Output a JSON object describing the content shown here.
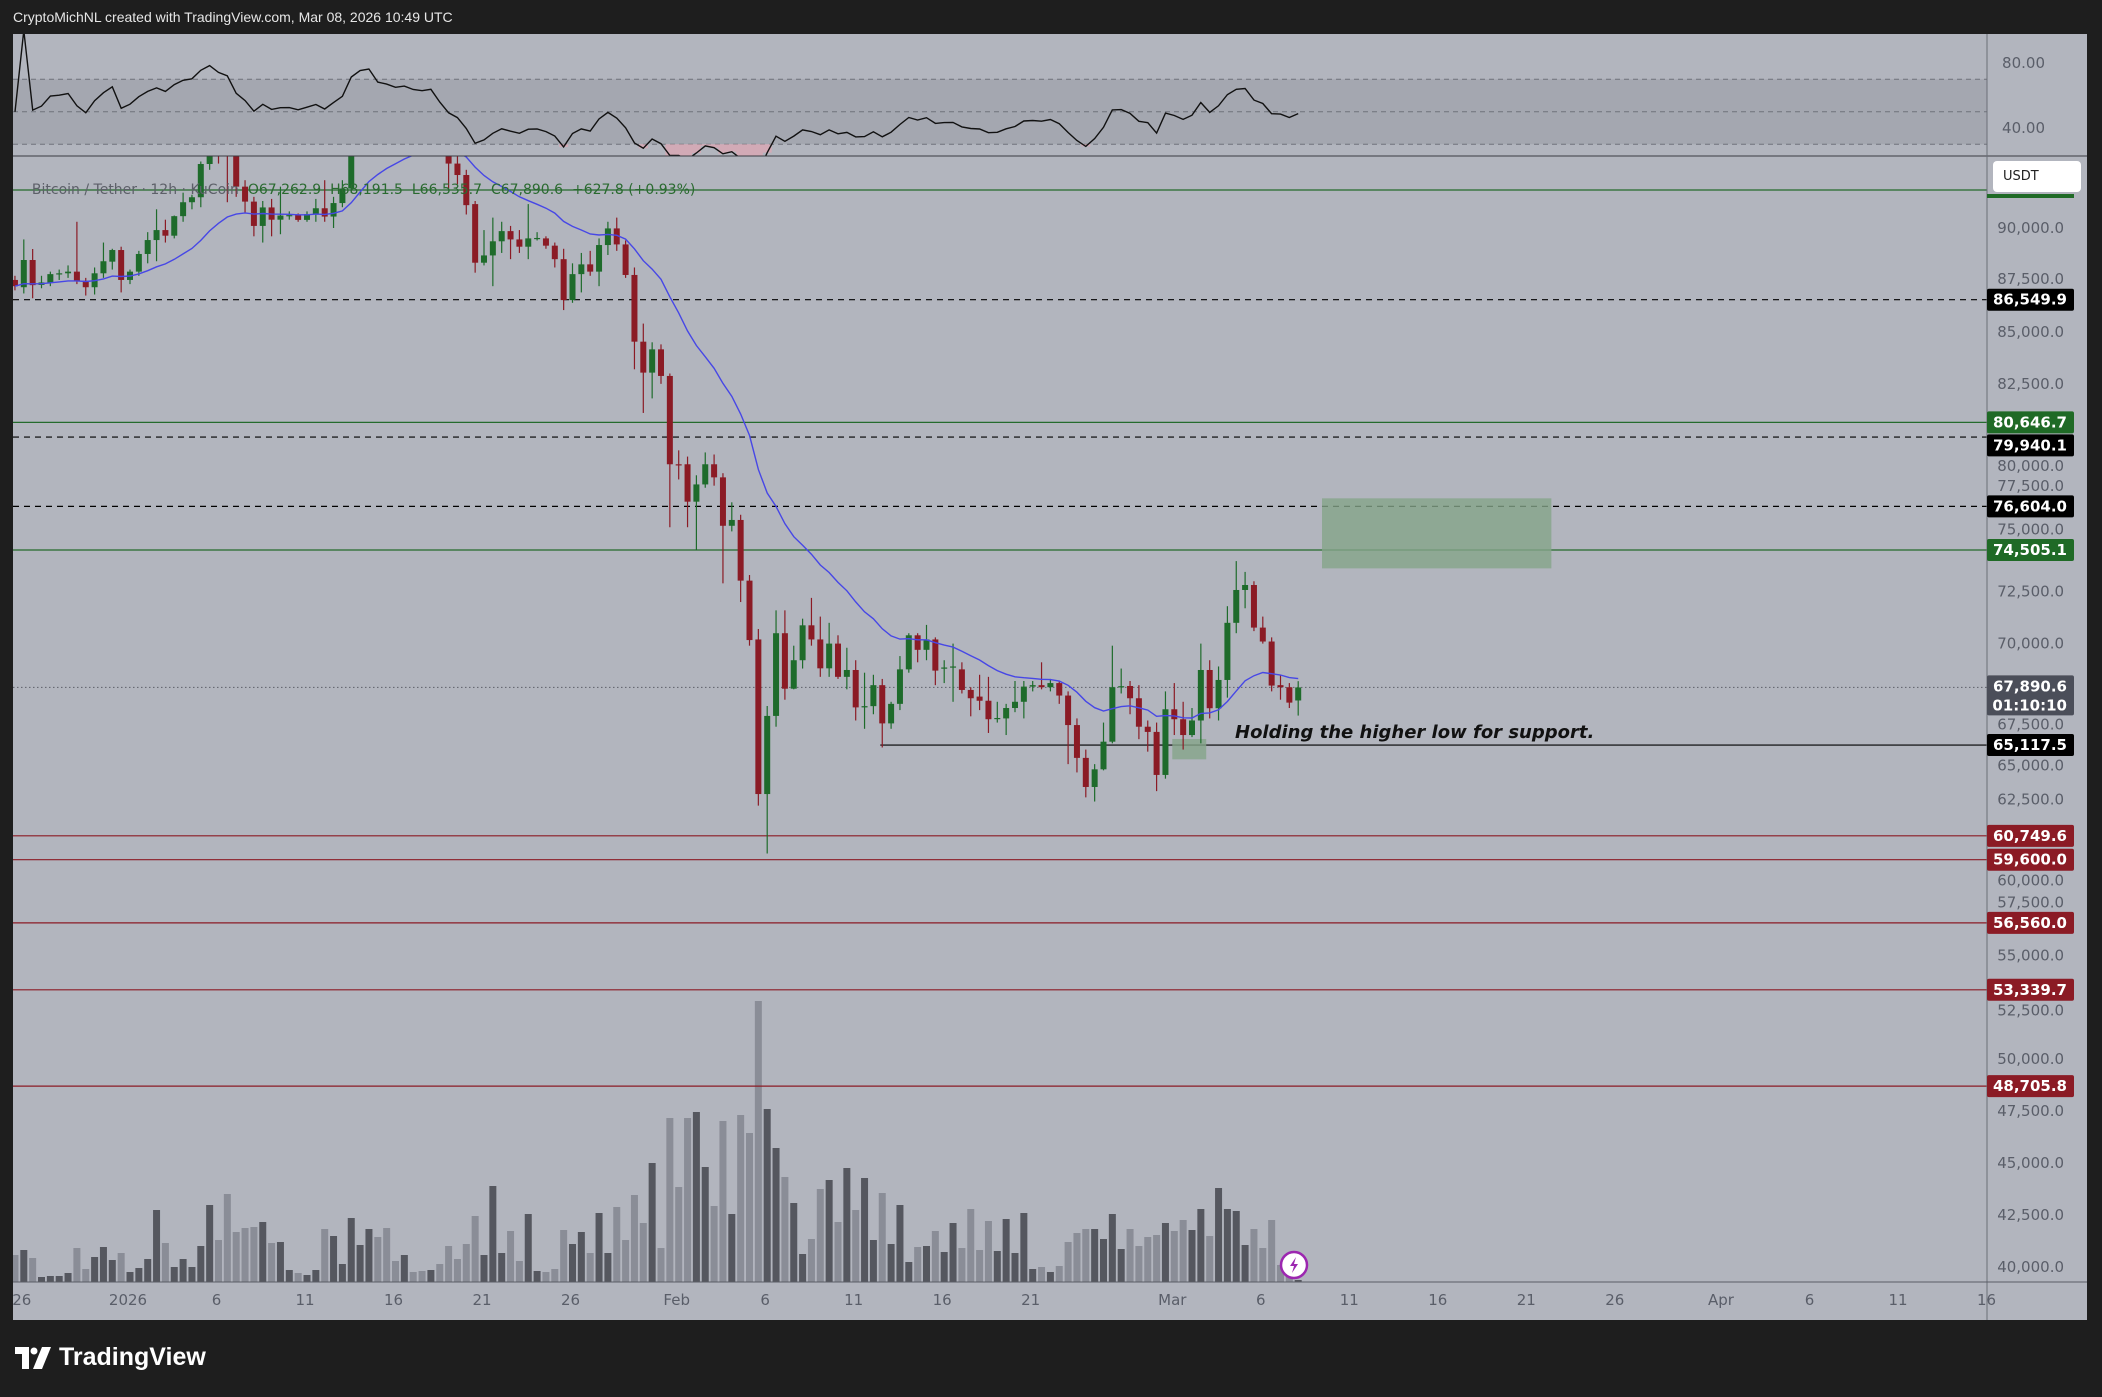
{
  "header": {
    "attribution": "CryptoMichNL created with TradingView.com, Mar 08, 2026 10:49 UTC"
  },
  "legend": {
    "symbol": "Bitcoin / Tether · 12h · KuCoin",
    "open": "O67,262.9",
    "high": "H68,191.5",
    "low": "L66,535.7",
    "close": "C67,890.6",
    "change": "+627.8 (+0.93%)"
  },
  "currency_button": "USDT",
  "annotation": "Holding the higher low for support.",
  "footer": {
    "brand": "TradingView"
  },
  "colors": {
    "background": "#b2b5be",
    "up": "#1e6b2b",
    "down": "#8b1b25",
    "moving_average": "#4747e6",
    "volume_up": "#55575f",
    "volume_down": "#8a8d97",
    "support_green": "#246b2c",
    "resistance_red": "#8b1b25",
    "box_fill": "#84a58a",
    "alert_icon": "#9c27b0"
  },
  "chart_data": {
    "type": "candlestick",
    "symbol": "Bitcoin / Tether",
    "interval": "12h",
    "exchange": "KuCoin",
    "first_bar": "2025-12-25T12:00",
    "ylim": [
      39230,
      93430
    ],
    "price_axis_ticks": [
      "90,000.0",
      "87,500.0",
      "85,000.0",
      "82,500.0",
      "80,000.0",
      "77,500.0",
      "75,000.0",
      "72,500.0",
      "70,000.0",
      "67,500.0",
      "65,000.0",
      "62,500.0",
      "60,000.0",
      "57,500.0",
      "55,000.0",
      "52,500.0",
      "50,000.0",
      "47,500.0",
      "45,000.0",
      "42,500.0",
      "40,000.0"
    ],
    "time_axis_ticks": [
      {
        "label": "26",
        "date": "2025-12-26"
      },
      {
        "label": "2026",
        "date": "2026-01-01"
      },
      {
        "label": "6",
        "date": "2026-01-06"
      },
      {
        "label": "11",
        "date": "2026-01-11"
      },
      {
        "label": "16",
        "date": "2026-01-16"
      },
      {
        "label": "21",
        "date": "2026-01-21"
      },
      {
        "label": "26",
        "date": "2026-01-26"
      },
      {
        "label": "Feb",
        "date": "2026-02-01"
      },
      {
        "label": "6",
        "date": "2026-02-06"
      },
      {
        "label": "11",
        "date": "2026-02-11"
      },
      {
        "label": "16",
        "date": "2026-02-16"
      },
      {
        "label": "21",
        "date": "2026-02-21"
      },
      {
        "label": "Mar",
        "date": "2026-03-01"
      },
      {
        "label": "6",
        "date": "2026-03-06"
      },
      {
        "label": "11",
        "date": "2026-03-11"
      },
      {
        "label": "16",
        "date": "2026-03-16"
      },
      {
        "label": "21",
        "date": "2026-03-21"
      },
      {
        "label": "26",
        "date": "2026-03-26"
      },
      {
        "label": "Apr",
        "date": "2026-04-01"
      },
      {
        "label": "6",
        "date": "2026-04-06"
      },
      {
        "label": "11",
        "date": "2026-04-11"
      },
      {
        "label": "16",
        "date": "2026-04-16"
      }
    ],
    "rsi": {
      "axis_ticks": [
        "80.00",
        "40.00"
      ],
      "levels": [
        70,
        50,
        30
      ],
      "period": 14
    },
    "moving_average_period": 20,
    "ohlc": [
      [
        87500,
        87700,
        87000,
        87200
      ],
      [
        87150,
        89450,
        86850,
        88460
      ],
      [
        88460,
        88990,
        86620,
        87250
      ],
      [
        87260,
        87700,
        87100,
        87380
      ],
      [
        87370,
        87900,
        87200,
        87780
      ],
      [
        87780,
        88000,
        87500,
        87820
      ],
      [
        87820,
        88200,
        87600,
        87900
      ],
      [
        87900,
        90300,
        87300,
        87460
      ],
      [
        87460,
        87600,
        86750,
        87150
      ],
      [
        87150,
        88100,
        86800,
        87820
      ],
      [
        87820,
        89300,
        87600,
        88400
      ],
      [
        88380,
        89000,
        88000,
        88940
      ],
      [
        88940,
        89100,
        86900,
        87500
      ],
      [
        87500,
        88000,
        87300,
        87900
      ],
      [
        87900,
        88900,
        87700,
        88750
      ],
      [
        88750,
        89800,
        88300,
        89420
      ],
      [
        89420,
        90900,
        88400,
        89900
      ],
      [
        89900,
        90400,
        89300,
        89630
      ],
      [
        89630,
        90600,
        89500,
        90570
      ],
      [
        90570,
        91700,
        90300,
        91240
      ],
      [
        91240,
        91600,
        90900,
        91480
      ],
      [
        91480,
        93200,
        91000,
        93080
      ],
      [
        93080,
        94600,
        92800,
        94200
      ],
      [
        94200,
        94800,
        93100,
        93700
      ],
      [
        93700,
        94300,
        91240,
        93450
      ],
      [
        93450,
        93600,
        91500,
        91990
      ],
      [
        91990,
        92300,
        90700,
        91270
      ],
      [
        91270,
        91500,
        89600,
        90100
      ],
      [
        90100,
        91300,
        89300,
        90990
      ],
      [
        90990,
        91400,
        89600,
        90400
      ],
      [
        90400,
        91990,
        89700,
        90600
      ],
      [
        90600,
        90800,
        90400,
        90620
      ],
      [
        90630,
        90700,
        90300,
        90390
      ],
      [
        90390,
        90800,
        90300,
        90670
      ],
      [
        90670,
        91400,
        90300,
        90950
      ],
      [
        90950,
        92300,
        90300,
        90550
      ],
      [
        90550,
        91500,
        90000,
        91200
      ],
      [
        91200,
        92300,
        91000,
        91900
      ],
      [
        91900,
        95500,
        91700,
        95000
      ],
      [
        95000,
        97200,
        94800,
        96600
      ],
      [
        96600,
        97900,
        96000,
        97000
      ],
      [
        97000,
        97300,
        95400,
        95800
      ],
      [
        95800,
        96500,
        95200,
        95600
      ],
      [
        95600,
        95900,
        94900,
        95300
      ],
      [
        95300,
        95800,
        94800,
        95500
      ],
      [
        95500,
        95900,
        95100,
        95200
      ],
      [
        95200,
        95600,
        94900,
        95100
      ],
      [
        95100,
        95500,
        94800,
        95300
      ],
      [
        95300,
        95500,
        93900,
        94200
      ],
      [
        94200,
        94400,
        91900,
        93100
      ],
      [
        93100,
        93500,
        92100,
        92550
      ],
      [
        92550,
        92800,
        90650,
        91100
      ],
      [
        91150,
        91300,
        87850,
        88330
      ],
      [
        88330,
        89900,
        88200,
        88680
      ],
      [
        88680,
        90500,
        87200,
        89360
      ],
      [
        89360,
        90300,
        88800,
        89850
      ],
      [
        89850,
        90100,
        88500,
        89450
      ],
      [
        89450,
        89900,
        88800,
        89100
      ],
      [
        89100,
        91150,
        88500,
        89500
      ],
      [
        89500,
        89800,
        89400,
        89520
      ],
      [
        89500,
        89600,
        89000,
        89150
      ],
      [
        89150,
        89300,
        88100,
        88500
      ],
      [
        88500,
        89000,
        86050,
        86530
      ],
      [
        86530,
        88300,
        86400,
        87780
      ],
      [
        87780,
        88800,
        86900,
        88250
      ],
      [
        88250,
        88900,
        87700,
        87900
      ],
      [
        87900,
        89500,
        87200,
        89180
      ],
      [
        89180,
        90300,
        88700,
        89980
      ],
      [
        89980,
        90500,
        88900,
        89210
      ],
      [
        89210,
        89400,
        87600,
        87740
      ],
      [
        87740,
        88100,
        83200,
        84530
      ],
      [
        84530,
        85400,
        81100,
        83040
      ],
      [
        83040,
        84500,
        81800,
        84160
      ],
      [
        84160,
        84400,
        82500,
        82880
      ],
      [
        82880,
        83000,
        75600,
        78630
      ],
      [
        78630,
        79300,
        77900,
        78600
      ],
      [
        78630,
        79000,
        75600,
        76830
      ],
      [
        76830,
        78100,
        74500,
        77660
      ],
      [
        77660,
        79200,
        77500,
        78630
      ],
      [
        78630,
        79100,
        77600,
        78000
      ],
      [
        78000,
        78200,
        72900,
        75670
      ],
      [
        75670,
        76800,
        75400,
        75950
      ],
      [
        75950,
        76200,
        72000,
        73030
      ],
      [
        73030,
        73300,
        69900,
        70170
      ],
      [
        70200,
        70700,
        62200,
        62760
      ],
      [
        62760,
        67000,
        59900,
        66520
      ],
      [
        66520,
        71600,
        66000,
        70500
      ],
      [
        70500,
        71600,
        67300,
        67830
      ],
      [
        67830,
        69900,
        67800,
        69200
      ],
      [
        69200,
        71200,
        68800,
        70880
      ],
      [
        70880,
        72200,
        69900,
        70200
      ],
      [
        70200,
        71300,
        68400,
        68810
      ],
      [
        68810,
        71000,
        68400,
        70000
      ],
      [
        70000,
        70400,
        68300,
        68400
      ],
      [
        68400,
        69800,
        67800,
        68730
      ],
      [
        68730,
        69200,
        66300,
        66930
      ],
      [
        66930,
        68600,
        65900,
        66990
      ],
      [
        66990,
        68500,
        66600,
        68000
      ],
      [
        68000,
        68300,
        65000,
        66160
      ],
      [
        66160,
        67200,
        65900,
        67100
      ],
      [
        67100,
        69400,
        66800,
        68760
      ],
      [
        68760,
        70500,
        68600,
        70400
      ],
      [
        70400,
        70500,
        69100,
        69700
      ],
      [
        69700,
        70900,
        69200,
        70200
      ],
      [
        70200,
        70300,
        68000,
        68700
      ],
      [
        68800,
        69200,
        68100,
        68850
      ],
      [
        68850,
        70000,
        67200,
        68900
      ],
      [
        68760,
        69100,
        67600,
        67770
      ],
      [
        67770,
        67900,
        66500,
        67370
      ],
      [
        67450,
        68500,
        66800,
        67250
      ],
      [
        67250,
        68400,
        65700,
        66360
      ],
      [
        66400,
        67200,
        66200,
        66420
      ],
      [
        66400,
        67100,
        65600,
        66900
      ],
      [
        66900,
        68200,
        66700,
        67200
      ],
      [
        67200,
        68200,
        66400,
        67930
      ],
      [
        67930,
        68200,
        67700,
        68000
      ],
      [
        68000,
        69100,
        67800,
        67900
      ],
      [
        67900,
        68300,
        67700,
        68100
      ],
      [
        68100,
        68200,
        67100,
        67500
      ],
      [
        67500,
        67700,
        64200,
        66080
      ],
      [
        66080,
        66400,
        63800,
        64500
      ],
      [
        64500,
        64900,
        62600,
        63100
      ],
      [
        63100,
        64200,
        62400,
        63950
      ],
      [
        63950,
        66200,
        63900,
        65280
      ],
      [
        65280,
        69900,
        65200,
        67900
      ],
      [
        67900,
        68800,
        67600,
        67950
      ],
      [
        67960,
        68200,
        66600,
        67370
      ],
      [
        67370,
        68000,
        65400,
        66000
      ],
      [
        66000,
        66300,
        64800,
        65750
      ],
      [
        65750,
        66200,
        62900,
        63680
      ],
      [
        63680,
        67700,
        63500,
        66840
      ],
      [
        66840,
        68100,
        65600,
        66360
      ],
      [
        66360,
        67200,
        64900,
        65600
      ],
      [
        65600,
        66900,
        65500,
        66300
      ],
      [
        66300,
        70000,
        65200,
        68730
      ],
      [
        68730,
        69200,
        66400,
        66890
      ],
      [
        66890,
        68900,
        66300,
        68250
      ],
      [
        68250,
        71800,
        67400,
        71000
      ],
      [
        71000,
        73970,
        70500,
        72580
      ],
      [
        72580,
        73450,
        71700,
        72820
      ],
      [
        72820,
        73000,
        70600,
        70770
      ],
      [
        70770,
        71300,
        70000,
        70100
      ],
      [
        70100,
        70300,
        67700,
        67980
      ],
      [
        68000,
        68500,
        67300,
        67900
      ],
      [
        67900,
        68100,
        66900,
        67160
      ],
      [
        67262.9,
        68191.5,
        66535.7,
        67890.6
      ]
    ],
    "volume_relative": [
      27,
      32,
      24,
      5,
      6,
      6,
      9,
      34,
      13,
      25,
      35,
      22,
      29,
      10,
      14,
      23,
      72,
      39,
      15,
      23,
      15,
      36,
      77,
      42,
      88,
      50,
      54,
      55,
      60,
      39,
      40,
      12,
      9,
      7,
      12,
      53,
      46,
      18,
      64,
      37,
      53,
      45,
      54,
      21,
      27,
      10,
      11,
      12,
      18,
      36,
      23,
      38,
      66,
      27,
      96,
      29,
      51,
      21,
      68,
      11,
      10,
      13,
      52,
      38,
      50,
      29,
      69,
      29,
      75,
      42,
      87,
      59,
      119,
      34,
      164,
      95,
      164,
      170,
      115,
      76,
      161,
      68,
      167,
      149,
      281,
      173,
      134,
      105,
      79,
      28,
      43,
      93,
      102,
      60,
      114,
      72,
      104,
      42,
      89,
      38,
      77,
      20,
      35,
      36,
      51,
      30,
      59,
      34,
      73,
      32,
      61,
      31,
      63,
      29,
      69,
      13,
      15,
      10,
      16,
      40,
      49,
      53,
      53,
      43,
      68,
      33,
      53,
      36,
      45,
      47,
      59,
      51,
      62,
      52,
      73,
      46,
      94,
      73,
      71,
      37,
      53,
      34,
      62,
      17,
      6,
      2
    ],
    "horizontal_levels": [
      {
        "label": "",
        "value": 91830,
        "style": "solid",
        "color": "#246b2c"
      },
      {
        "label": "86,549.9",
        "style": "dashed",
        "color": "#000000",
        "tag": "#000000"
      },
      {
        "label": "80,646.7",
        "style": "solid",
        "color": "#246b2c",
        "tag": "#1f6a26"
      },
      {
        "label": "79,940.1",
        "style": "dashed",
        "color": "#000000",
        "tag": "#000000"
      },
      {
        "label": "76,604.0",
        "style": "dashed",
        "color": "#000000",
        "tag": "#000000"
      },
      {
        "label": "74,505.1",
        "style": "solid",
        "color": "#246b2c",
        "tag": "#1f6a26"
      },
      {
        "label": "65,117.5",
        "style": "solid",
        "color": "#000000",
        "tag": "#000000",
        "from": "2026-02-12T12:00"
      },
      {
        "label": "60,749.6",
        "style": "solid",
        "color": "#8b1b25",
        "tag": "#8b1b25"
      },
      {
        "label": "59,600.0",
        "style": "solid",
        "color": "#8b1b25",
        "tag": "#8b1b25"
      },
      {
        "label": "56,560.0",
        "style": "solid",
        "color": "#8b1b25",
        "tag": "#8b1b25"
      },
      {
        "label": "53,339.7",
        "style": "solid",
        "color": "#8b1b25",
        "tag": "#8b1b25"
      },
      {
        "label": "48,705.8",
        "style": "solid",
        "color": "#8b1b25",
        "tag": "#8b1b25"
      }
    ],
    "last_price": {
      "label": "67,890.6",
      "countdown": "01:10:10"
    },
    "boxes": [
      {
        "from": "2026-03-09T11:00",
        "to": "2026-03-22T10:00",
        "top": 76990,
        "bottom": 73620
      },
      {
        "from": "2026-03-01T00:00",
        "to": "2026-03-02T22:00",
        "top": 65410,
        "bottom": 64430
      }
    ]
  }
}
